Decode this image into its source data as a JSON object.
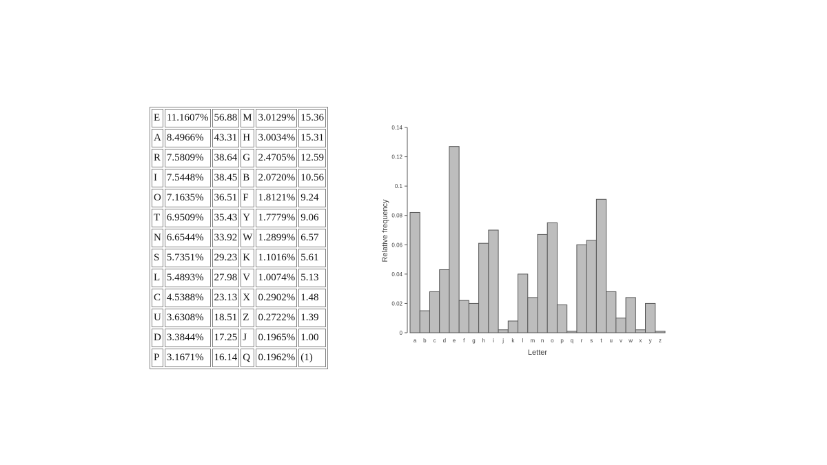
{
  "table": {
    "rows": [
      [
        "E",
        "11.1607%",
        "56.88",
        "M",
        "3.0129%",
        "15.36"
      ],
      [
        "A",
        "8.4966%",
        "43.31",
        "H",
        "3.0034%",
        "15.31"
      ],
      [
        "R",
        "7.5809%",
        "38.64",
        "G",
        "2.4705%",
        "12.59"
      ],
      [
        "I",
        "7.5448%",
        "38.45",
        "B",
        "2.0720%",
        "10.56"
      ],
      [
        "O",
        "7.1635%",
        "36.51",
        "F",
        "1.8121%",
        "9.24"
      ],
      [
        "T",
        "6.9509%",
        "35.43",
        "Y",
        "1.7779%",
        "9.06"
      ],
      [
        "N",
        "6.6544%",
        "33.92",
        "W",
        "1.2899%",
        "6.57"
      ],
      [
        "S",
        "5.7351%",
        "29.23",
        "K",
        "1.1016%",
        "5.61"
      ],
      [
        "L",
        "5.4893%",
        "27.98",
        "V",
        "1.0074%",
        "5.13"
      ],
      [
        "C",
        "4.5388%",
        "23.13",
        "X",
        "0.2902%",
        "1.48"
      ],
      [
        "U",
        "3.6308%",
        "18.51",
        "Z",
        "0.2722%",
        "1.39"
      ],
      [
        "D",
        "3.3844%",
        "17.25",
        "J",
        "0.1965%",
        "1.00"
      ],
      [
        "P",
        "3.1671%",
        "16.14",
        "Q",
        "0.1962%",
        "(1)"
      ]
    ]
  },
  "chart_data": {
    "type": "bar",
    "title": "",
    "xlabel": "Letter",
    "ylabel": "Relative frequency",
    "categories": [
      "a",
      "b",
      "c",
      "d",
      "e",
      "f",
      "g",
      "h",
      "i",
      "j",
      "k",
      "l",
      "m",
      "n",
      "o",
      "p",
      "q",
      "r",
      "s",
      "t",
      "u",
      "v",
      "w",
      "x",
      "y",
      "z"
    ],
    "values": [
      0.082,
      0.015,
      0.028,
      0.043,
      0.127,
      0.022,
      0.02,
      0.061,
      0.07,
      0.002,
      0.008,
      0.04,
      0.024,
      0.067,
      0.075,
      0.019,
      0.001,
      0.06,
      0.063,
      0.091,
      0.028,
      0.01,
      0.024,
      0.002,
      0.02,
      0.001
    ],
    "ylim": [
      0,
      0.14
    ],
    "yticks": [
      "0",
      "0.02",
      "0.04",
      "0.06",
      "0.08",
      "0.1",
      "0.12",
      "0.14"
    ],
    "grid": false,
    "bar_color": "#bdbdbd",
    "bar_edge_color": "#555555"
  }
}
